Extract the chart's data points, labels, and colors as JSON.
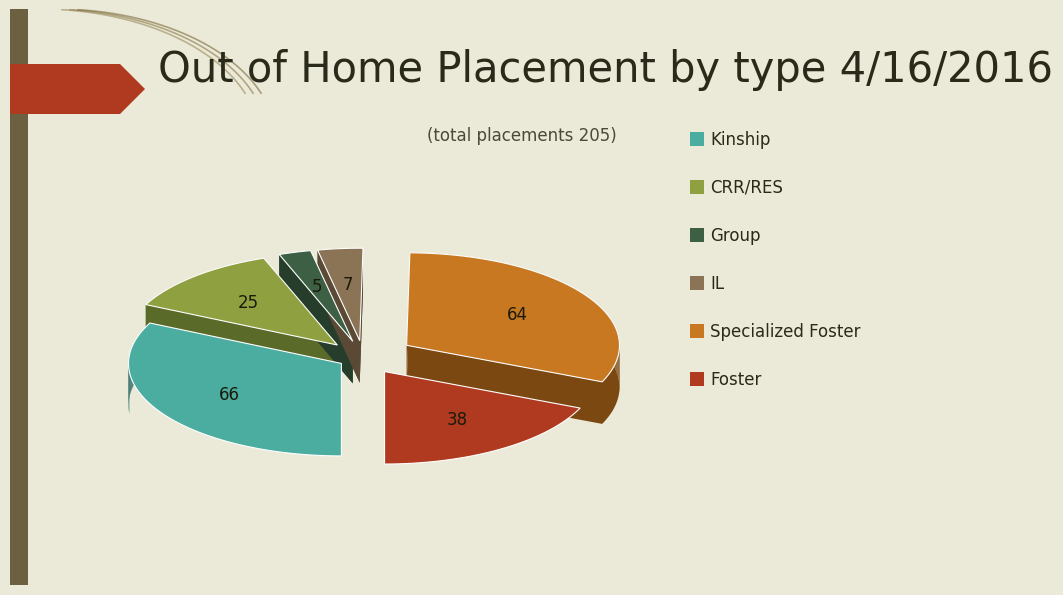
{
  "title": "Out of Home Placement by type 4/16/2016",
  "subtitle": "(total placements 205)",
  "labels": [
    "Foster",
    "Specialized Foster",
    "IL",
    "Group",
    "CRR/RES",
    "Kinship"
  ],
  "values": [
    38,
    64,
    7,
    5,
    25,
    66
  ],
  "colors": [
    "#B03A20",
    "#C87820",
    "#8B7355",
    "#3D6045",
    "#8FA040",
    "#4AADA0"
  ],
  "dark_colors": [
    "#6B1F10",
    "#7A4810",
    "#5A4A35",
    "#253D2A",
    "#5A6A28",
    "#2A6A65"
  ],
  "explode": [
    0.06,
    0.08,
    0.06,
    0.06,
    0.06,
    0.04
  ],
  "background_color": "#EBE9D8",
  "title_color": "#2A2A1A",
  "subtitle_color": "#4A4A3A",
  "legend_color": "#2A2A1A",
  "title_fontsize": 30,
  "subtitle_fontsize": 12,
  "legend_fontsize": 12,
  "label_fontsize": 12,
  "arrow_color": "#B03A20",
  "sidebar_color": "#6B6040"
}
